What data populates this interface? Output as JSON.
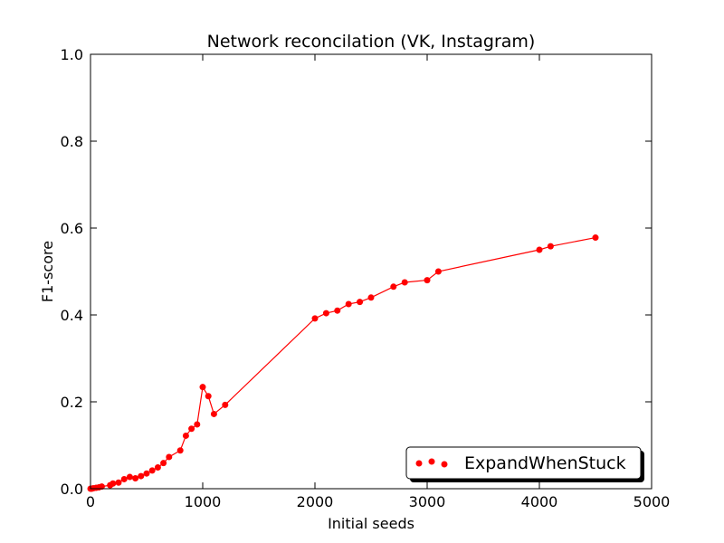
{
  "chart_data": {
    "type": "line",
    "title": "Network reconcilation (VK, Instagram)",
    "xlabel": "Initial seeds",
    "ylabel": "F1-score",
    "xlim": [
      0,
      5000
    ],
    "ylim": [
      0,
      1.0
    ],
    "xticks": [
      0,
      1000,
      2000,
      3000,
      4000,
      5000
    ],
    "xtick_labels": [
      "0",
      "1000",
      "2000",
      "3000",
      "4000",
      "5000"
    ],
    "yticks": [
      0,
      0.2,
      0.4,
      0.6,
      0.8,
      1.0
    ],
    "ytick_labels": [
      "0.0",
      "0.2",
      "0.4",
      "0.6",
      "0.8",
      "1.0"
    ],
    "grid": false,
    "legend_position": "bottom-right",
    "color": "#ff0000",
    "series": [
      {
        "name": "ExpandWhenStuck",
        "x": [
          0,
          10,
          25,
          50,
          75,
          100,
          175,
          200,
          250,
          300,
          350,
          400,
          450,
          500,
          550,
          600,
          650,
          700,
          800,
          850,
          900,
          950,
          1000,
          1050,
          1100,
          1200,
          2000,
          2100,
          2200,
          2300,
          2400,
          2500,
          2700,
          2800,
          3000,
          3100,
          4000,
          4100,
          4500
        ],
        "y": [
          0.0,
          0.0,
          0.001,
          0.002,
          0.003,
          0.005,
          0.008,
          0.012,
          0.014,
          0.022,
          0.027,
          0.024,
          0.029,
          0.035,
          0.042,
          0.049,
          0.059,
          0.073,
          0.088,
          0.122,
          0.138,
          0.148,
          0.234,
          0.213,
          0.172,
          0.193,
          0.392,
          0.404,
          0.41,
          0.425,
          0.43,
          0.44,
          0.465,
          0.475,
          0.48,
          0.5,
          0.55,
          0.558,
          0.578
        ]
      }
    ]
  }
}
